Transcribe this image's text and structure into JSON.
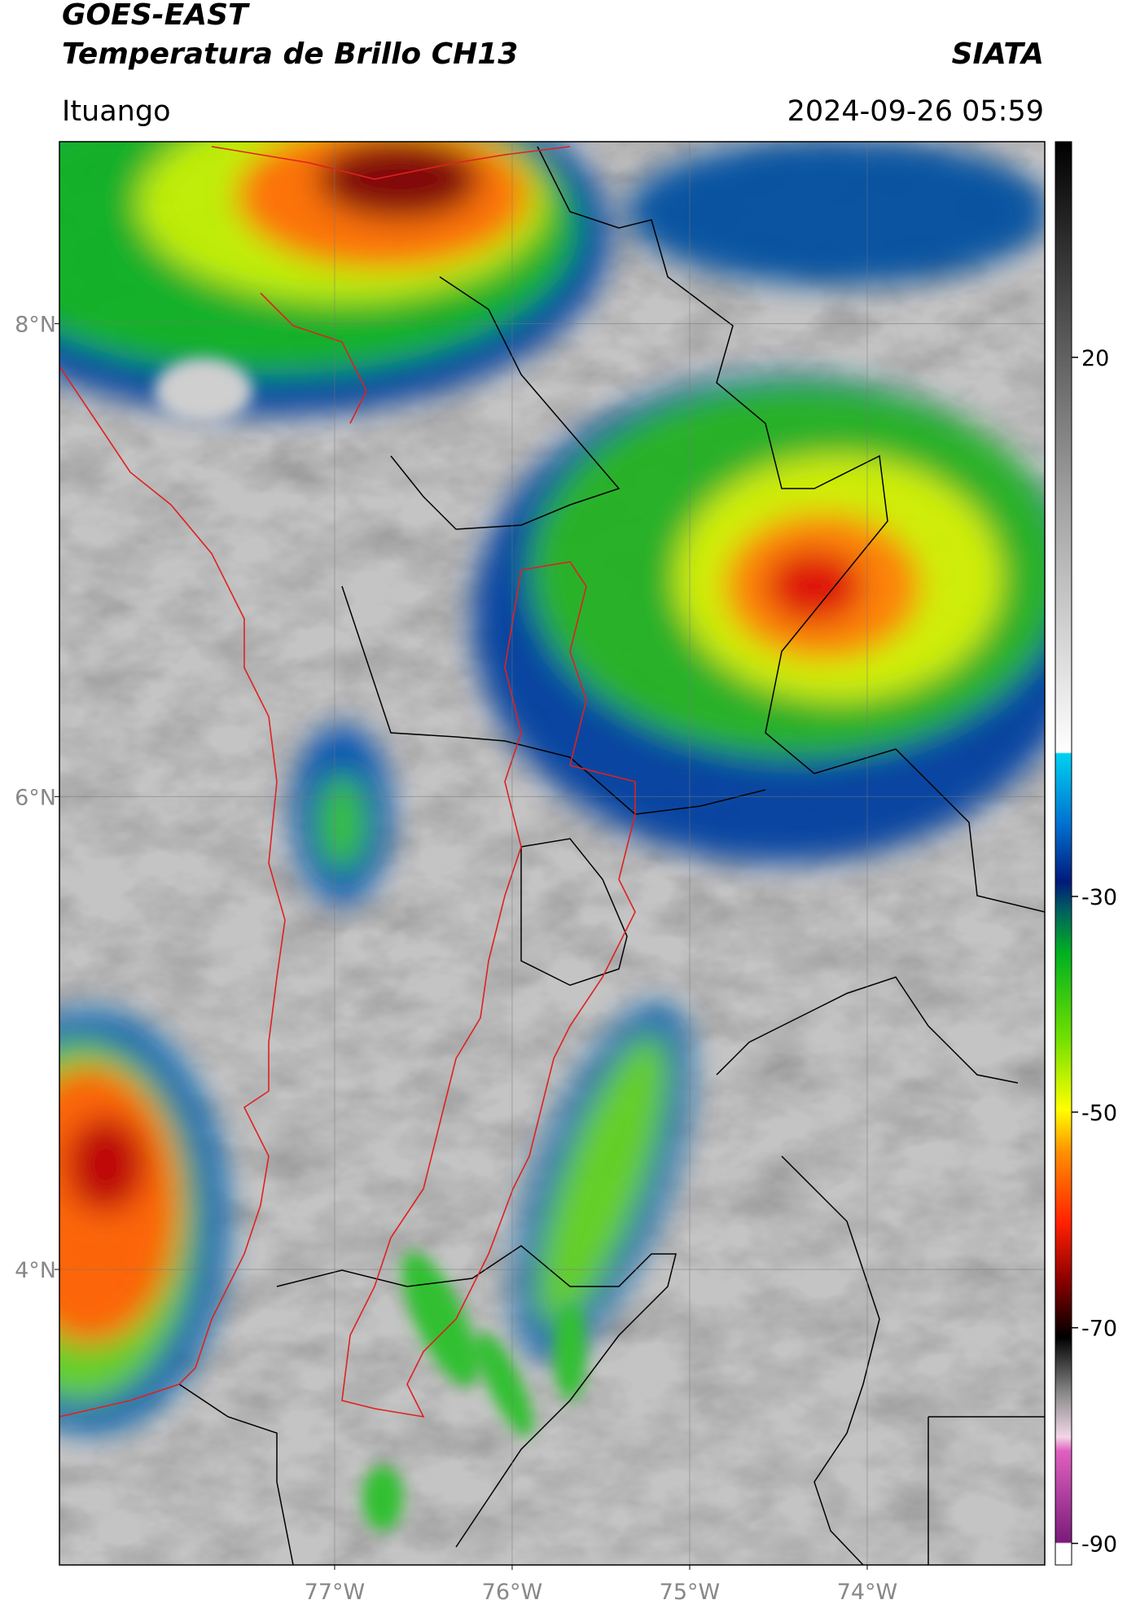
{
  "header": {
    "title": "GOES-EAST",
    "subtitle": "Temperatura de Brillo CH13",
    "agency": "SIATA",
    "location": "Ituango",
    "timestamp": "2024-09-26 05:59"
  },
  "map": {
    "xlim": [
      -78.55,
      -73.0
    ],
    "ylim": [
      2.75,
      8.77
    ],
    "xticks": [
      {
        "value": -77,
        "label": "77°W"
      },
      {
        "value": -76,
        "label": "76°W"
      },
      {
        "value": -75,
        "label": "75°W"
      },
      {
        "value": -74,
        "label": "74°W"
      }
    ],
    "yticks": [
      {
        "value": 8,
        "label": "8°N"
      },
      {
        "value": 6,
        "label": "6°N"
      },
      {
        "value": 4,
        "label": "4°N"
      }
    ],
    "grid": true
  },
  "colorbar": {
    "lim": [
      -92,
      40
    ],
    "ticks": [
      20,
      -30,
      -50,
      -70,
      -90
    ]
  }
}
